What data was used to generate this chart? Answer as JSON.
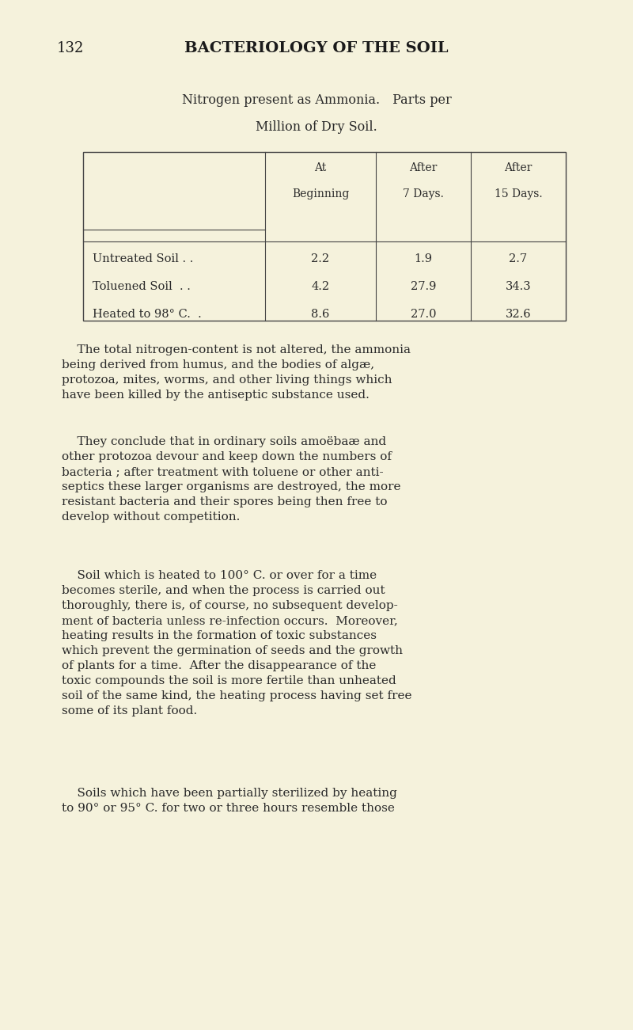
{
  "bg_color": "#f5f2dc",
  "page_number": "132",
  "page_header": "BACTERIOLOGY OF THE SOIL",
  "table_title_line1": "Nitrogen present as Ammonia. Parts per",
  "table_title_line2": "Million of Dry Soil.",
  "col_headers": [
    "At\nBeginning",
    "After\n7 Days.",
    "After\n15 Days."
  ],
  "row_labels": [
    "Untreated Soil . .",
    "Toluened Soil  . .",
    "Heated to 98° C.  ."
  ],
  "table_data": [
    [
      "2.2",
      "1.9",
      "2.7"
    ],
    [
      "4.2",
      "27.9",
      "34.3"
    ],
    [
      "8.6",
      "27.0",
      "32.6"
    ]
  ],
  "body_paragraphs": [
    "    The total nitrogen-content is not altered, the ammonia\nbeing derived from humus, and the bodies of algæ,\nprotozoa, mites, worms, and other living things which\nhave been killed by the antiseptic substance used.",
    "    They conclude that in ordinary soils amoëbaæ and\nother protozoa devour and keep down the numbers of\nbacteria ; after treatment with toluene or other anti-\nseptics these larger organisms are destroyed, the more\nresistant bacteria and their spores being then free to\ndevelop without competition.",
    "    Soil which is heated to 100° C. or over for a time\nbecomes sterile, and when the process is carried out\nthoroughly, there is, of course, no subsequent develop-\nment of bacteria unless re-infection occurs. Moreover,\nheating results in the formation of toxic substances\nwhich prevent the germination of seeds and the growth\nof plants for a time. After the disappearance of the\ntoxic compounds the soil is more fertile than unheated\nsoil of the same kind, the heating process having set free\nsome of its plant food.",
    "    Soils which have been partially sterilized by heating\nto 90° or 95° C. for two or three hours resemble those"
  ],
  "text_color": "#2a2a2a",
  "header_color": "#1a1a1a"
}
